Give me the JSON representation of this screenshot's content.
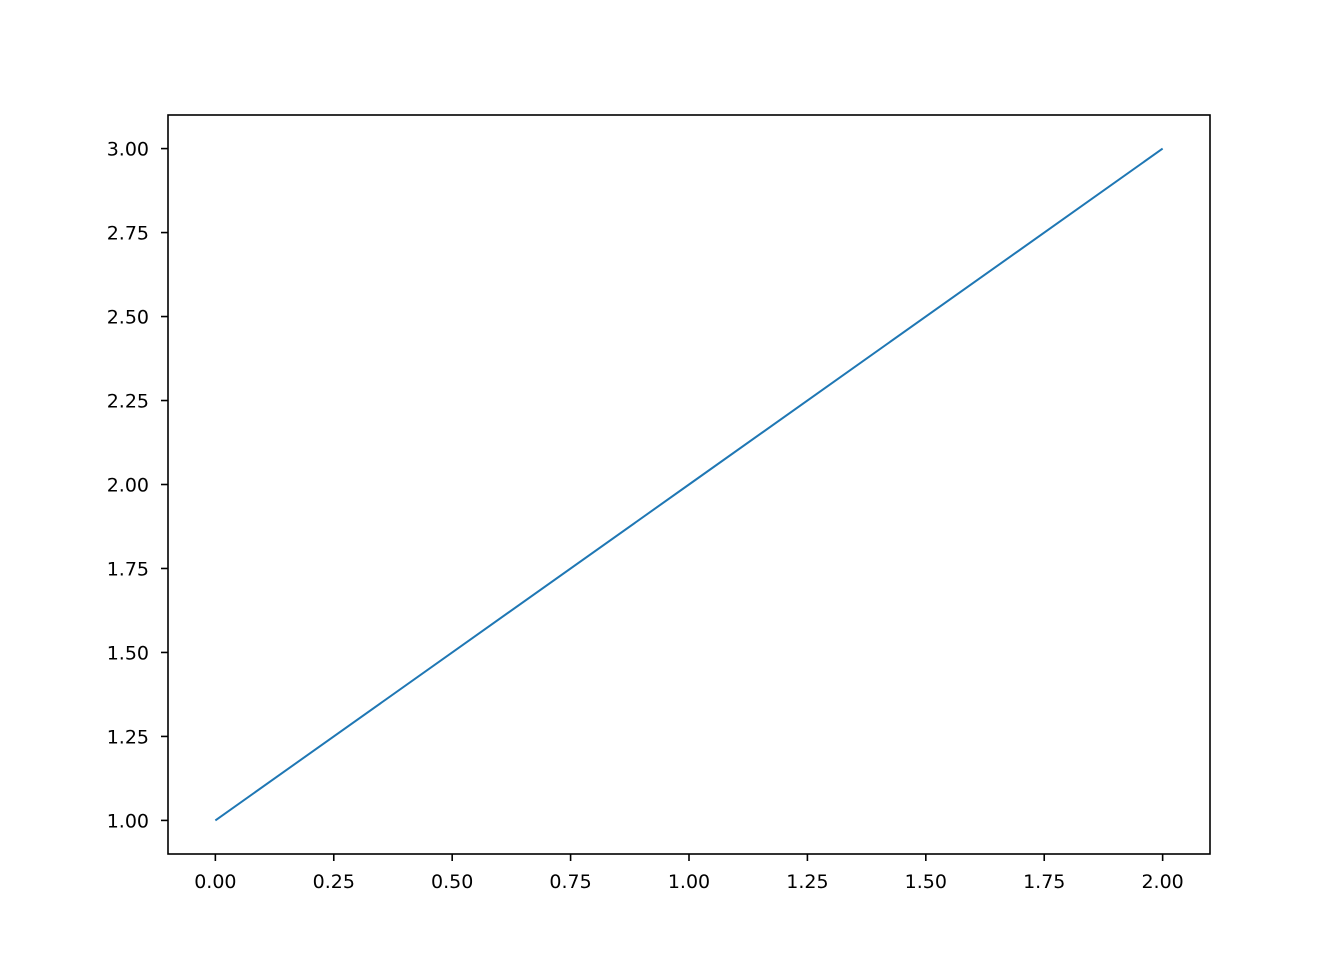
{
  "chart_data": {
    "type": "line",
    "title": "",
    "xlabel": "",
    "ylabel": "",
    "xlim": [
      -0.1,
      2.1
    ],
    "ylim": [
      0.9,
      3.1
    ],
    "grid": false,
    "x": [
      0,
      1,
      2
    ],
    "series": [
      {
        "values": [
          1,
          2,
          3
        ],
        "color": "#1f77b4"
      }
    ],
    "xticks": [
      0,
      0.25,
      0.5,
      0.75,
      1.0,
      1.25,
      1.5,
      1.75,
      2.0
    ],
    "xtick_labels": [
      "0.00",
      "0.25",
      "0.50",
      "0.75",
      "1.00",
      "1.25",
      "1.50",
      "1.75",
      "2.00"
    ],
    "yticks": [
      1.0,
      1.25,
      1.5,
      1.75,
      2.0,
      2.25,
      2.5,
      2.75,
      3.0
    ],
    "ytick_labels": [
      "1.00",
      "1.25",
      "1.50",
      "1.75",
      "2.00",
      "2.25",
      "2.50",
      "2.75",
      "3.00"
    ]
  }
}
